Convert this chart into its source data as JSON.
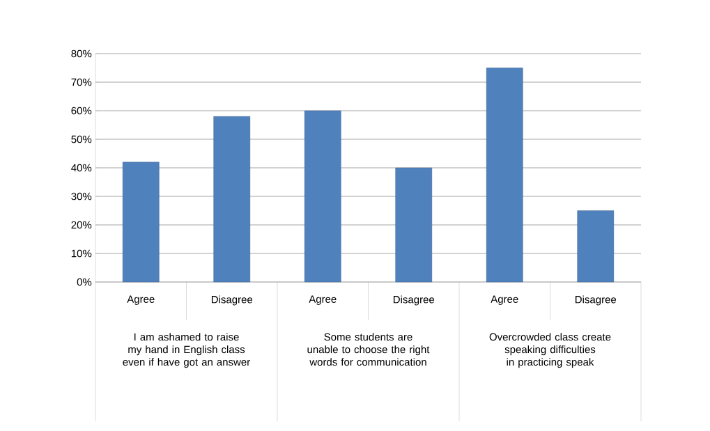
{
  "chart_data": {
    "type": "bar",
    "categories": [
      "Agree",
      "Disagree",
      "Agree",
      "Disagree",
      "Agree",
      "Disagree"
    ],
    "values": [
      42,
      58,
      60,
      40,
      75,
      25
    ],
    "color": "#4f81bd",
    "ylim": [
      0,
      80
    ],
    "yticks": [
      {
        "value": 0,
        "label": "0%"
      },
      {
        "value": 10,
        "label": "10%"
      },
      {
        "value": 20,
        "label": "20%"
      },
      {
        "value": 30,
        "label": "30%"
      },
      {
        "value": 40,
        "label": "40%"
      },
      {
        "value": 50,
        "label": "50%"
      },
      {
        "value": 60,
        "label": "60%"
      },
      {
        "value": 70,
        "label": "70%"
      },
      {
        "value": 80,
        "label": "80%"
      }
    ],
    "grid": "y",
    "annotations": [
      "I am ashamed to raise my hand in English class even if have got an answer",
      "Some students are unable to choose the right words for communication",
      "Overcrowded class create speaking difficulties in practicing speak"
    ]
  }
}
